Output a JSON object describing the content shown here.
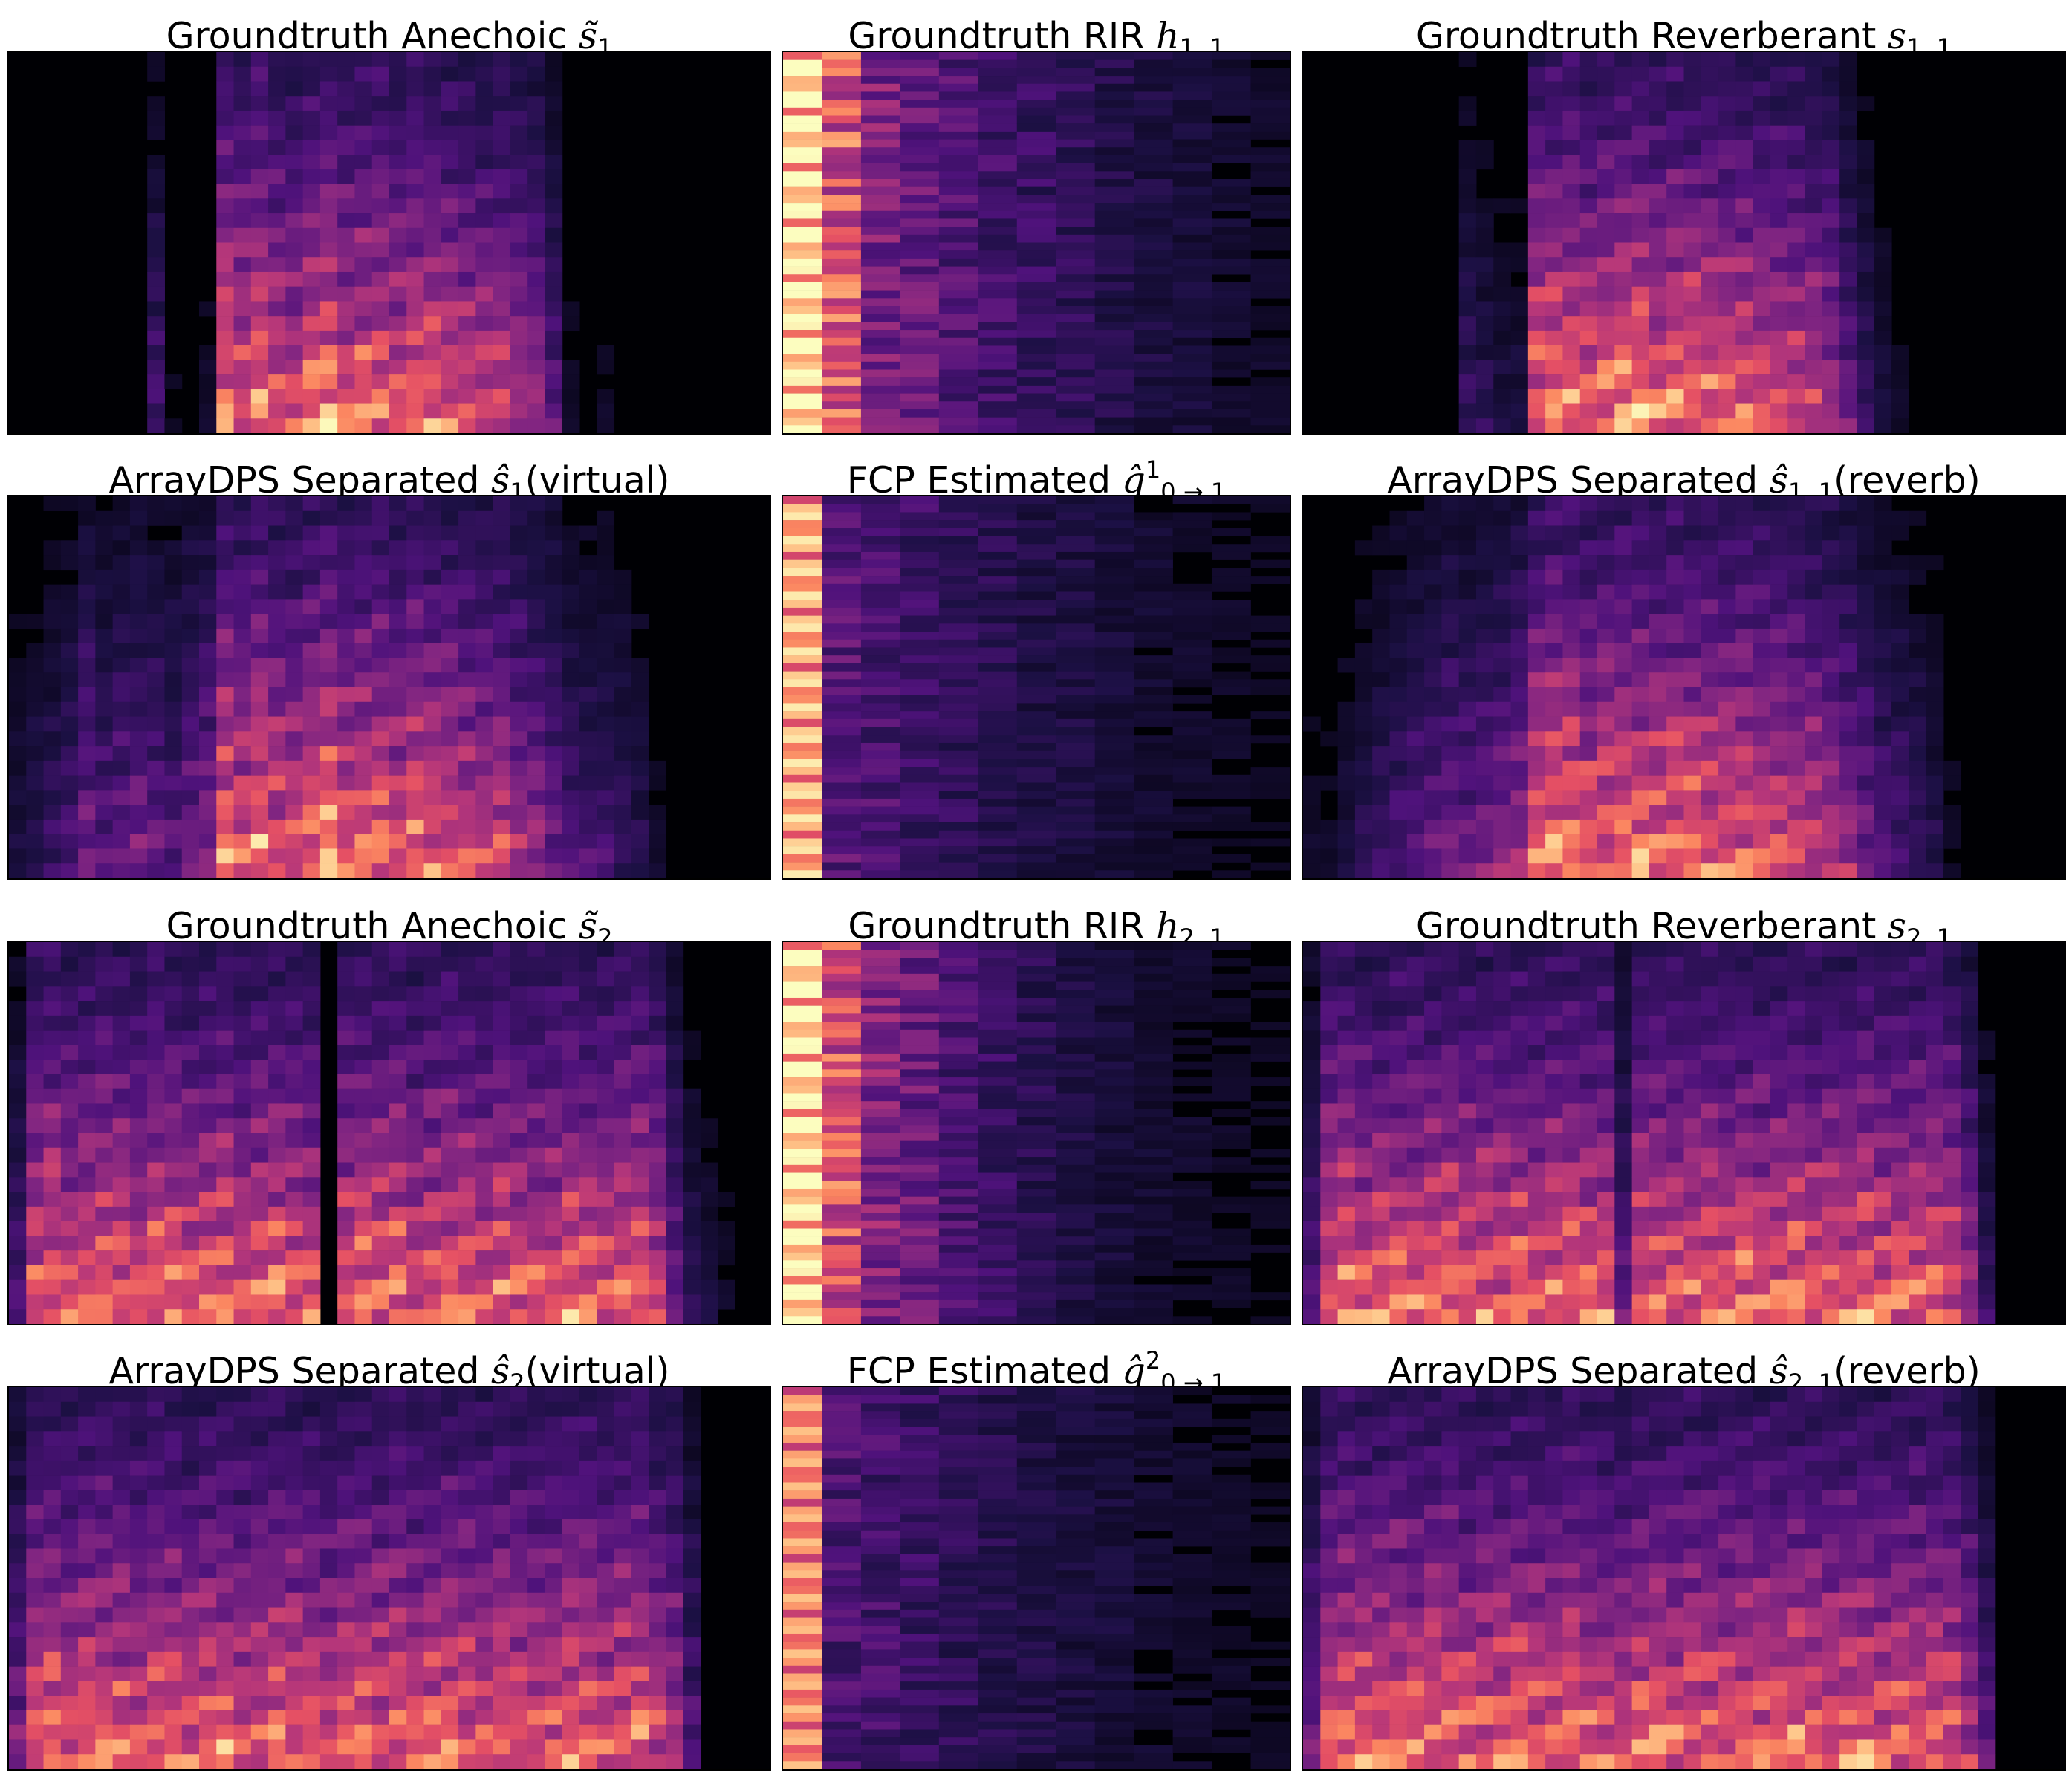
{
  "figure": {
    "colormap": [
      "#000004",
      "#1c1044",
      "#4f127b",
      "#812581",
      "#b5367a",
      "#e55064",
      "#fb8761",
      "#fec287",
      "#fcfdbf"
    ]
  },
  "chart_data": [
    {
      "type": "heatmap",
      "kind": "spectrogram",
      "title": {
        "main": "Groundtruth Anechoic",
        "symbol": "s̃",
        "sub": "1",
        "sup": "",
        "suffix": ""
      },
      "activity": [
        0.0,
        0.0,
        0.0,
        0.0,
        0.0,
        0.0,
        0.02,
        0.05,
        0.3,
        0.08,
        0.05,
        0.1,
        0.95,
        0.85,
        1.0,
        0.8,
        0.75,
        0.9,
        1.0,
        0.85,
        0.9,
        0.95,
        0.8,
        0.9,
        0.85,
        0.8,
        0.75,
        0.7,
        0.75,
        0.6,
        0.55,
        0.35,
        0.1,
        0.05,
        0.1,
        0.05,
        0.03,
        0.02,
        0.0,
        0.0,
        0.0,
        0.0,
        0.0,
        0.0
      ]
    },
    {
      "type": "heatmap",
      "kind": "rir",
      "title": {
        "main": "Groundtruth RIR",
        "symbol": "h",
        "sub": "1, 1",
        "sup": "",
        "suffix": ""
      },
      "column_energy": [
        1.0,
        0.72,
        0.42,
        0.36,
        0.3,
        0.26,
        0.22,
        0.2,
        0.16,
        0.14,
        0.12,
        0.1,
        0.09
      ]
    },
    {
      "type": "heatmap",
      "kind": "spectrogram",
      "title": {
        "main": "Groundtruth Reverberant",
        "symbol": "s",
        "sub": "1, 1",
        "sup": "",
        "suffix": ""
      },
      "activity": [
        0.0,
        0.0,
        0.0,
        0.0,
        0.0,
        0.0,
        0.0,
        0.0,
        0.05,
        0.25,
        0.2,
        0.15,
        0.15,
        0.9,
        0.95,
        0.95,
        0.85,
        0.9,
        0.95,
        0.95,
        0.9,
        0.92,
        0.9,
        0.88,
        0.85,
        0.85,
        0.8,
        0.8,
        0.75,
        0.7,
        0.65,
        0.4,
        0.25,
        0.15,
        0.1,
        0.05,
        0.02,
        0.0,
        0.0,
        0.0,
        0.0,
        0.0,
        0.0,
        0.0
      ]
    },
    {
      "type": "heatmap",
      "kind": "spectrogram",
      "title": {
        "main": "ArrayDPS Separated",
        "symbol": "ŝ",
        "sub": "1",
        "sup": "",
        "suffix": "(virtual)"
      },
      "activity": [
        0.15,
        0.2,
        0.25,
        0.3,
        0.45,
        0.35,
        0.4,
        0.45,
        0.4,
        0.35,
        0.45,
        0.5,
        0.95,
        0.85,
        1.0,
        0.8,
        0.75,
        0.9,
        1.0,
        0.85,
        0.9,
        0.95,
        0.8,
        0.9,
        0.85,
        0.8,
        0.75,
        0.7,
        0.75,
        0.6,
        0.55,
        0.45,
        0.35,
        0.3,
        0.3,
        0.25,
        0.2,
        0.1,
        0.0,
        0.0,
        0.0,
        0.0,
        0.0,
        0.0
      ]
    },
    {
      "type": "heatmap",
      "kind": "rir",
      "title": {
        "main": "FCP Estimated",
        "symbol": "ĝ",
        "sub": "0 → 1",
        "sup": "1",
        "suffix": ""
      },
      "column_energy": [
        0.88,
        0.32,
        0.28,
        0.24,
        0.2,
        0.18,
        0.15,
        0.14,
        0.12,
        0.1,
        0.09,
        0.08,
        0.07
      ]
    },
    {
      "type": "heatmap",
      "kind": "spectrogram",
      "title": {
        "main": "ArrayDPS Separated",
        "symbol": "ŝ",
        "sub": "1, 1",
        "sup": "",
        "suffix": "(reverb)"
      },
      "activity": [
        0.1,
        0.1,
        0.15,
        0.2,
        0.25,
        0.3,
        0.35,
        0.4,
        0.45,
        0.4,
        0.45,
        0.5,
        0.55,
        0.9,
        0.95,
        0.95,
        0.85,
        0.9,
        0.95,
        0.95,
        0.9,
        0.92,
        0.9,
        0.88,
        0.85,
        0.85,
        0.8,
        0.8,
        0.75,
        0.7,
        0.65,
        0.55,
        0.45,
        0.35,
        0.3,
        0.25,
        0.2,
        0.1,
        0.05,
        0.0,
        0.0,
        0.0,
        0.0,
        0.0
      ]
    },
    {
      "type": "heatmap",
      "kind": "spectrogram",
      "title": {
        "main": "Groundtruth Anechoic",
        "symbol": "s̃",
        "sub": "2",
        "sup": "",
        "suffix": ""
      },
      "activity": [
        0.3,
        0.85,
        0.9,
        0.8,
        0.85,
        0.9,
        0.85,
        0.8,
        0.9,
        0.85,
        0.8,
        0.85,
        0.9,
        0.8,
        0.85,
        0.9,
        0.85,
        0.8,
        0.05,
        0.85,
        0.9,
        0.85,
        0.9,
        0.8,
        0.85,
        0.9,
        0.85,
        0.8,
        0.9,
        0.85,
        0.8,
        0.85,
        0.9,
        0.85,
        0.8,
        0.85,
        0.9,
        0.75,
        0.4,
        0.2,
        0.15,
        0.1,
        0.05,
        0.0
      ]
    },
    {
      "type": "heatmap",
      "kind": "rir",
      "title": {
        "main": "Groundtruth RIR",
        "symbol": "h",
        "sub": "2, 1",
        "sup": "",
        "suffix": ""
      },
      "column_energy": [
        1.0,
        0.7,
        0.45,
        0.38,
        0.28,
        0.22,
        0.18,
        0.14,
        0.12,
        0.1,
        0.09,
        0.08,
        0.07
      ]
    },
    {
      "type": "heatmap",
      "kind": "spectrogram",
      "title": {
        "main": "Groundtruth Reverberant",
        "symbol": "s",
        "sub": "2, 1",
        "sup": "",
        "suffix": ""
      },
      "activity": [
        0.35,
        0.85,
        0.9,
        0.85,
        0.85,
        0.9,
        0.85,
        0.85,
        0.9,
        0.85,
        0.85,
        0.85,
        0.9,
        0.85,
        0.85,
        0.9,
        0.85,
        0.85,
        0.4,
        0.85,
        0.9,
        0.85,
        0.9,
        0.85,
        0.85,
        0.9,
        0.85,
        0.85,
        0.9,
        0.85,
        0.85,
        0.85,
        0.9,
        0.85,
        0.85,
        0.85,
        0.9,
        0.8,
        0.55,
        0.25,
        0.0,
        0.0,
        0.0,
        0.0
      ]
    },
    {
      "type": "heatmap",
      "kind": "spectrogram",
      "title": {
        "main": "ArrayDPS Separated",
        "symbol": "ŝ",
        "sub": "2",
        "sup": "",
        "suffix": "(virtual)"
      },
      "activity": [
        0.45,
        0.85,
        0.9,
        0.8,
        0.85,
        0.9,
        0.85,
        0.8,
        0.9,
        0.85,
        0.8,
        0.85,
        0.9,
        0.8,
        0.85,
        0.9,
        0.85,
        0.8,
        0.75,
        0.85,
        0.9,
        0.85,
        0.9,
        0.8,
        0.85,
        0.9,
        0.85,
        0.8,
        0.9,
        0.85,
        0.8,
        0.85,
        0.9,
        0.85,
        0.8,
        0.85,
        0.9,
        0.75,
        0.65,
        0.35,
        0.0,
        0.0,
        0.0,
        0.0
      ]
    },
    {
      "type": "heatmap",
      "kind": "rir",
      "title": {
        "main": "FCP Estimated",
        "symbol": "ĝ",
        "sub": "0 → 1",
        "sup": "2",
        "suffix": ""
      },
      "column_energy": [
        0.8,
        0.28,
        0.26,
        0.22,
        0.2,
        0.17,
        0.15,
        0.13,
        0.12,
        0.1,
        0.09,
        0.08,
        0.07
      ]
    },
    {
      "type": "heatmap",
      "kind": "spectrogram",
      "title": {
        "main": "ArrayDPS Separated",
        "symbol": "ŝ",
        "sub": "2, 1",
        "sup": "",
        "suffix": "(reverb)"
      },
      "activity": [
        0.45,
        0.85,
        0.9,
        0.85,
        0.85,
        0.9,
        0.85,
        0.85,
        0.9,
        0.85,
        0.85,
        0.85,
        0.9,
        0.85,
        0.85,
        0.9,
        0.85,
        0.85,
        0.75,
        0.85,
        0.9,
        0.85,
        0.9,
        0.85,
        0.85,
        0.9,
        0.85,
        0.85,
        0.9,
        0.85,
        0.85,
        0.85,
        0.9,
        0.85,
        0.85,
        0.85,
        0.9,
        0.8,
        0.65,
        0.35,
        0.0,
        0.0,
        0.0,
        0.0
      ]
    }
  ]
}
